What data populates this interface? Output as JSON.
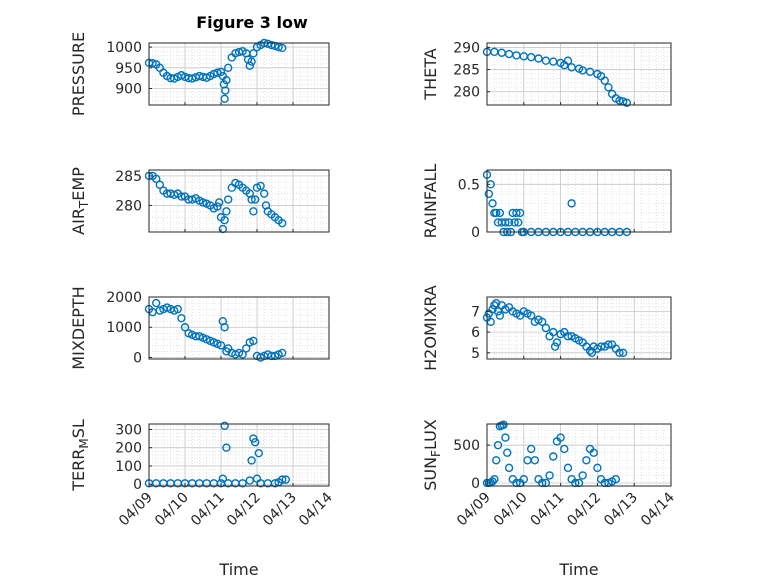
{
  "figure_title": "Figure 3 low",
  "chart_data": [
    {
      "type": "scatter",
      "ylabel": "PRESSURE",
      "xlabel": "",
      "ylim": [
        860,
        1010
      ],
      "yticks": [
        900,
        950,
        1000
      ],
      "xlim": [
        0,
        5
      ],
      "xticks": [
        "04/09",
        "04/10",
        "04/11",
        "04/12",
        "04/13",
        "04/14"
      ],
      "show_xtick_labels": false,
      "grid": true,
      "marker_color": "#0072BD",
      "points": [
        [
          0.0,
          962
        ],
        [
          0.1,
          961
        ],
        [
          0.2,
          958
        ],
        [
          0.3,
          950
        ],
        [
          0.4,
          938
        ],
        [
          0.5,
          930
        ],
        [
          0.6,
          925
        ],
        [
          0.7,
          924
        ],
        [
          0.8,
          928
        ],
        [
          0.9,
          932
        ],
        [
          1.0,
          928
        ],
        [
          1.1,
          925
        ],
        [
          1.2,
          924
        ],
        [
          1.3,
          927
        ],
        [
          1.4,
          930
        ],
        [
          1.5,
          928
        ],
        [
          1.6,
          926
        ],
        [
          1.7,
          930
        ],
        [
          1.8,
          935
        ],
        [
          1.9,
          938
        ],
        [
          2.0,
          940
        ],
        [
          2.05,
          930
        ],
        [
          2.08,
          910
        ],
        [
          2.1,
          875
        ],
        [
          2.12,
          895
        ],
        [
          2.15,
          920
        ],
        [
          2.2,
          950
        ],
        [
          2.3,
          975
        ],
        [
          2.4,
          985
        ],
        [
          2.5,
          988
        ],
        [
          2.6,
          990
        ],
        [
          2.7,
          985
        ],
        [
          2.75,
          970
        ],
        [
          2.8,
          955
        ],
        [
          2.85,
          965
        ],
        [
          2.9,
          985
        ],
        [
          3.0,
          1000
        ],
        [
          3.1,
          1005
        ],
        [
          3.2,
          1010
        ],
        [
          3.3,
          1008
        ],
        [
          3.4,
          1005
        ],
        [
          3.5,
          1003
        ],
        [
          3.6,
          1000
        ],
        [
          3.7,
          998
        ]
      ]
    },
    {
      "type": "scatter",
      "ylabel": "THETA",
      "xlabel": "",
      "ylim": [
        277,
        291
      ],
      "yticks": [
        280,
        285,
        290
      ],
      "xlim": [
        0,
        5
      ],
      "xticks": [
        "04/09",
        "04/10",
        "04/11",
        "04/12",
        "04/13",
        "04/14"
      ],
      "show_xtick_labels": false,
      "grid": true,
      "marker_color": "#0072BD",
      "points": [
        [
          0.0,
          289
        ],
        [
          0.2,
          289
        ],
        [
          0.4,
          288.8
        ],
        [
          0.6,
          288.5
        ],
        [
          0.8,
          288.2
        ],
        [
          1.0,
          288
        ],
        [
          1.2,
          287.8
        ],
        [
          1.4,
          287.5
        ],
        [
          1.6,
          287
        ],
        [
          1.8,
          286.8
        ],
        [
          2.0,
          286.5
        ],
        [
          2.1,
          286
        ],
        [
          2.2,
          287
        ],
        [
          2.3,
          285.5
        ],
        [
          2.5,
          285.2
        ],
        [
          2.6,
          284.8
        ],
        [
          2.8,
          284.5
        ],
        [
          3.0,
          284
        ],
        [
          3.1,
          283.5
        ],
        [
          3.2,
          282.5
        ],
        [
          3.3,
          281
        ],
        [
          3.4,
          279.5
        ],
        [
          3.5,
          278.5
        ],
        [
          3.6,
          278
        ],
        [
          3.7,
          277.8
        ],
        [
          3.8,
          277.5
        ]
      ]
    },
    {
      "type": "scatter",
      "ylabel": "AIR_TEMP",
      "xlabel": "",
      "ylim": [
        275.5,
        286
      ],
      "yticks": [
        280,
        285
      ],
      "xlim": [
        0,
        5
      ],
      "xticks": [
        "04/09",
        "04/10",
        "04/11",
        "04/12",
        "04/13",
        "04/14"
      ],
      "show_xtick_labels": false,
      "grid": true,
      "marker_color": "#0072BD",
      "points": [
        [
          0.0,
          285
        ],
        [
          0.1,
          285
        ],
        [
          0.2,
          284.5
        ],
        [
          0.3,
          283.5
        ],
        [
          0.4,
          282.5
        ],
        [
          0.5,
          282
        ],
        [
          0.6,
          282
        ],
        [
          0.7,
          281.8
        ],
        [
          0.8,
          282
        ],
        [
          0.9,
          281.5
        ],
        [
          1.0,
          281.5
        ],
        [
          1.1,
          281
        ],
        [
          1.2,
          281
        ],
        [
          1.3,
          281.2
        ],
        [
          1.4,
          280.8
        ],
        [
          1.5,
          280.5
        ],
        [
          1.6,
          280.3
        ],
        [
          1.7,
          280
        ],
        [
          1.8,
          279.5
        ],
        [
          1.9,
          279.8
        ],
        [
          1.95,
          280.5
        ],
        [
          2.0,
          278
        ],
        [
          2.05,
          276
        ],
        [
          2.1,
          277.5
        ],
        [
          2.15,
          279
        ],
        [
          2.2,
          281
        ],
        [
          2.3,
          283
        ],
        [
          2.4,
          283.8
        ],
        [
          2.5,
          283.5
        ],
        [
          2.6,
          283
        ],
        [
          2.7,
          282.5
        ],
        [
          2.8,
          282
        ],
        [
          2.85,
          281
        ],
        [
          2.9,
          279
        ],
        [
          2.95,
          281
        ],
        [
          3.0,
          283
        ],
        [
          3.1,
          283.3
        ],
        [
          3.2,
          282
        ],
        [
          3.25,
          280
        ],
        [
          3.3,
          279
        ],
        [
          3.4,
          278.5
        ],
        [
          3.5,
          278
        ],
        [
          3.6,
          277.5
        ],
        [
          3.7,
          277
        ]
      ]
    },
    {
      "type": "scatter",
      "ylabel": "RAINFALL",
      "xlabel": "",
      "ylim": [
        0,
        0.65
      ],
      "yticks": [
        0,
        0.5
      ],
      "xlim": [
        0,
        5
      ],
      "xticks": [
        "04/09",
        "04/10",
        "04/11",
        "04/12",
        "04/13",
        "04/14"
      ],
      "show_xtick_labels": false,
      "grid": true,
      "marker_color": "#0072BD",
      "points": [
        [
          0.0,
          0.6
        ],
        [
          0.05,
          0.4
        ],
        [
          0.1,
          0.5
        ],
        [
          0.15,
          0.3
        ],
        [
          0.2,
          0.2
        ],
        [
          0.25,
          0.2
        ],
        [
          0.3,
          0.1
        ],
        [
          0.35,
          0.2
        ],
        [
          0.4,
          0.1
        ],
        [
          0.45,
          0
        ],
        [
          0.5,
          0.1
        ],
        [
          0.55,
          0
        ],
        [
          0.6,
          0.1
        ],
        [
          0.65,
          0
        ],
        [
          0.7,
          0.2
        ],
        [
          0.75,
          0.1
        ],
        [
          0.8,
          0.2
        ],
        [
          0.85,
          0.1
        ],
        [
          0.9,
          0.2
        ],
        [
          0.95,
          0
        ],
        [
          1.0,
          0
        ],
        [
          1.2,
          0
        ],
        [
          1.4,
          0
        ],
        [
          1.6,
          0
        ],
        [
          1.8,
          0
        ],
        [
          2.0,
          0
        ],
        [
          2.2,
          0
        ],
        [
          2.3,
          0.3
        ],
        [
          2.4,
          0
        ],
        [
          2.6,
          0
        ],
        [
          2.8,
          0
        ],
        [
          3.0,
          0
        ],
        [
          3.2,
          0
        ],
        [
          3.4,
          0
        ],
        [
          3.6,
          0
        ],
        [
          3.8,
          0
        ]
      ]
    },
    {
      "type": "scatter",
      "ylabel": "MIXDEPTH",
      "xlabel": "",
      "ylim": [
        -50,
        2000
      ],
      "yticks": [
        0,
        1000,
        2000
      ],
      "xlim": [
        0,
        5
      ],
      "xticks": [
        "04/09",
        "04/10",
        "04/11",
        "04/12",
        "04/13",
        "04/14"
      ],
      "show_xtick_labels": false,
      "grid": true,
      "marker_color": "#0072BD",
      "points": [
        [
          0.0,
          1600
        ],
        [
          0.1,
          1500
        ],
        [
          0.2,
          1800
        ],
        [
          0.3,
          1550
        ],
        [
          0.4,
          1600
        ],
        [
          0.5,
          1650
        ],
        [
          0.6,
          1600
        ],
        [
          0.7,
          1550
        ],
        [
          0.8,
          1600
        ],
        [
          0.9,
          1300
        ],
        [
          1.0,
          1000
        ],
        [
          1.1,
          800
        ],
        [
          1.2,
          750
        ],
        [
          1.3,
          700
        ],
        [
          1.4,
          700
        ],
        [
          1.5,
          650
        ],
        [
          1.6,
          600
        ],
        [
          1.7,
          550
        ],
        [
          1.8,
          500
        ],
        [
          1.9,
          450
        ],
        [
          2.0,
          400
        ],
        [
          2.05,
          1200
        ],
        [
          2.1,
          1000
        ],
        [
          2.15,
          200
        ],
        [
          2.2,
          300
        ],
        [
          2.3,
          150
        ],
        [
          2.4,
          100
        ],
        [
          2.5,
          150
        ],
        [
          2.6,
          100
        ],
        [
          2.7,
          300
        ],
        [
          2.8,
          500
        ],
        [
          2.9,
          550
        ],
        [
          3.0,
          50
        ],
        [
          3.1,
          0
        ],
        [
          3.2,
          50
        ],
        [
          3.3,
          100
        ],
        [
          3.4,
          50
        ],
        [
          3.5,
          50
        ],
        [
          3.6,
          100
        ],
        [
          3.7,
          150
        ]
      ]
    },
    {
      "type": "scatter",
      "ylabel": "H2OMIXRA",
      "xlabel": "",
      "ylim": [
        4.7,
        7.7
      ],
      "yticks": [
        5,
        6,
        7
      ],
      "xlim": [
        0,
        5
      ],
      "xticks": [
        "04/09",
        "04/10",
        "04/11",
        "04/12",
        "04/13",
        "04/14"
      ],
      "show_xtick_labels": false,
      "grid": true,
      "marker_color": "#0072BD",
      "points": [
        [
          0.0,
          6.7
        ],
        [
          0.05,
          6.9
        ],
        [
          0.1,
          6.5
        ],
        [
          0.15,
          7.1
        ],
        [
          0.2,
          7.3
        ],
        [
          0.25,
          7.4
        ],
        [
          0.3,
          7.0
        ],
        [
          0.35,
          6.8
        ],
        [
          0.4,
          7.3
        ],
        [
          0.5,
          7.1
        ],
        [
          0.6,
          7.2
        ],
        [
          0.7,
          7.0
        ],
        [
          0.8,
          6.9
        ],
        [
          0.9,
          6.8
        ],
        [
          1.0,
          7.0
        ],
        [
          1.1,
          6.9
        ],
        [
          1.2,
          6.8
        ],
        [
          1.3,
          6.5
        ],
        [
          1.4,
          6.6
        ],
        [
          1.5,
          6.5
        ],
        [
          1.6,
          6.2
        ],
        [
          1.7,
          5.8
        ],
        [
          1.8,
          6.0
        ],
        [
          1.85,
          5.3
        ],
        [
          1.9,
          5.5
        ],
        [
          2.0,
          5.9
        ],
        [
          2.1,
          6.0
        ],
        [
          2.2,
          5.8
        ],
        [
          2.3,
          5.8
        ],
        [
          2.4,
          5.7
        ],
        [
          2.5,
          5.6
        ],
        [
          2.6,
          5.5
        ],
        [
          2.7,
          5.3
        ],
        [
          2.8,
          5.1
        ],
        [
          2.85,
          5.0
        ],
        [
          2.9,
          5.3
        ],
        [
          3.0,
          5.2
        ],
        [
          3.1,
          5.3
        ],
        [
          3.2,
          5.3
        ],
        [
          3.3,
          5.4
        ],
        [
          3.4,
          5.4
        ],
        [
          3.5,
          5.2
        ],
        [
          3.6,
          5.0
        ],
        [
          3.7,
          5.0
        ]
      ]
    },
    {
      "type": "scatter",
      "ylabel": "TERR_MSL",
      "xlabel": "Time",
      "ylim": [
        -10,
        330
      ],
      "yticks": [
        0,
        100,
        200,
        300
      ],
      "xlim": [
        0,
        5
      ],
      "xticks": [
        "04/09",
        "04/10",
        "04/11",
        "04/12",
        "04/13",
        "04/14"
      ],
      "show_xtick_labels": true,
      "grid": true,
      "marker_color": "#0072BD",
      "points": [
        [
          0.0,
          5
        ],
        [
          0.2,
          5
        ],
        [
          0.4,
          5
        ],
        [
          0.6,
          5
        ],
        [
          0.8,
          5
        ],
        [
          1.0,
          5
        ],
        [
          1.2,
          5
        ],
        [
          1.4,
          5
        ],
        [
          1.6,
          5
        ],
        [
          1.8,
          5
        ],
        [
          2.0,
          5
        ],
        [
          2.05,
          30
        ],
        [
          2.1,
          320
        ],
        [
          2.15,
          200
        ],
        [
          2.2,
          5
        ],
        [
          2.4,
          5
        ],
        [
          2.6,
          5
        ],
        [
          2.8,
          20
        ],
        [
          2.85,
          130
        ],
        [
          2.9,
          250
        ],
        [
          2.95,
          230
        ],
        [
          3.0,
          30
        ],
        [
          3.05,
          170
        ],
        [
          3.1,
          5
        ],
        [
          3.3,
          5
        ],
        [
          3.5,
          5
        ],
        [
          3.6,
          10
        ],
        [
          3.7,
          25
        ],
        [
          3.8,
          25
        ]
      ]
    },
    {
      "type": "scatter",
      "ylabel": "SUN_FLUX",
      "xlabel": "Time",
      "ylim": [
        -40,
        780
      ],
      "yticks": [
        0,
        500
      ],
      "xlim": [
        0,
        5
      ],
      "xticks": [
        "04/09",
        "04/10",
        "04/11",
        "04/12",
        "04/13",
        "04/14"
      ],
      "show_xtick_labels": true,
      "grid": true,
      "marker_color": "#0072BD",
      "points": [
        [
          0.0,
          0
        ],
        [
          0.05,
          0
        ],
        [
          0.1,
          5
        ],
        [
          0.15,
          20
        ],
        [
          0.2,
          50
        ],
        [
          0.25,
          300
        ],
        [
          0.3,
          500
        ],
        [
          0.35,
          750
        ],
        [
          0.4,
          760
        ],
        [
          0.45,
          770
        ],
        [
          0.5,
          600
        ],
        [
          0.55,
          400
        ],
        [
          0.6,
          200
        ],
        [
          0.7,
          50
        ],
        [
          0.8,
          0
        ],
        [
          0.9,
          0
        ],
        [
          1.0,
          50
        ],
        [
          1.1,
          300
        ],
        [
          1.2,
          450
        ],
        [
          1.3,
          300
        ],
        [
          1.4,
          50
        ],
        [
          1.5,
          0
        ],
        [
          1.6,
          0
        ],
        [
          1.7,
          100
        ],
        [
          1.8,
          350
        ],
        [
          1.9,
          550
        ],
        [
          2.0,
          600
        ],
        [
          2.1,
          450
        ],
        [
          2.2,
          200
        ],
        [
          2.3,
          50
        ],
        [
          2.4,
          0
        ],
        [
          2.5,
          0
        ],
        [
          2.6,
          100
        ],
        [
          2.7,
          300
        ],
        [
          2.8,
          450
        ],
        [
          2.9,
          400
        ],
        [
          3.0,
          200
        ],
        [
          3.1,
          50
        ],
        [
          3.2,
          0
        ],
        [
          3.3,
          0
        ],
        [
          3.4,
          20
        ],
        [
          3.5,
          50
        ]
      ]
    }
  ]
}
